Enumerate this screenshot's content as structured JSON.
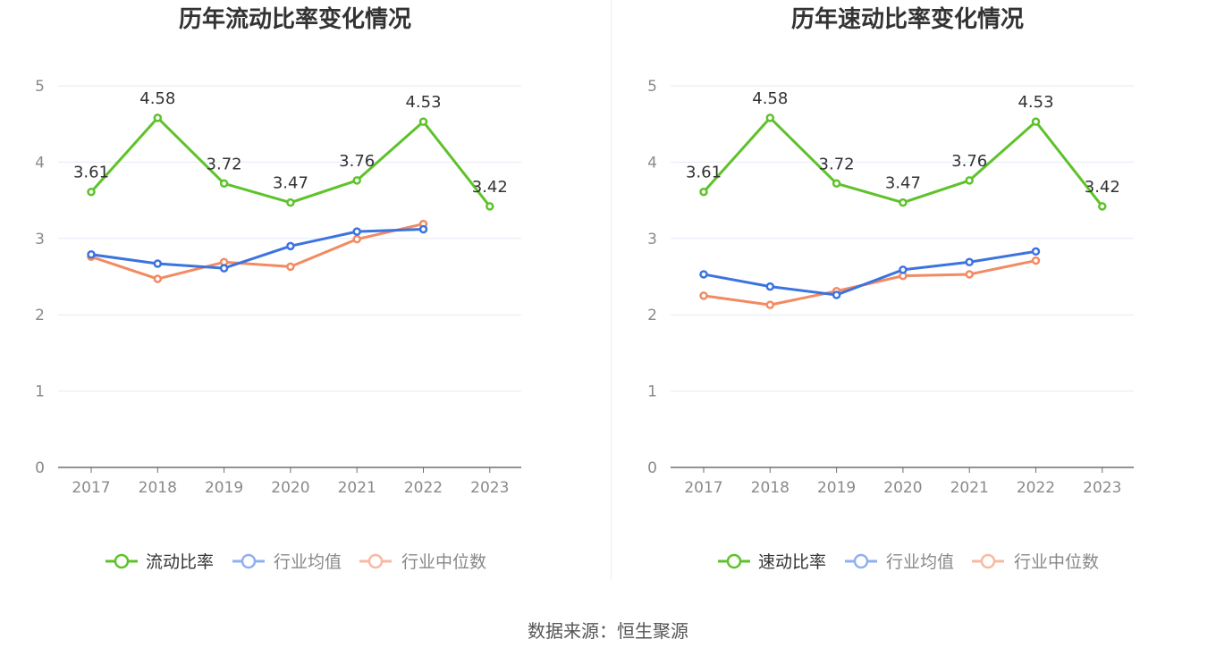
{
  "source": "数据来源：恒生聚源",
  "colors": {
    "main": "#5ec22a",
    "avg": "#3b73e0",
    "median": "#f28a62",
    "legend_avg": "#8fb0ee",
    "legend_median": "#f6b9a2",
    "grid": "#e6e9f5",
    "axis": "#6e6e6e",
    "tick_text": "#8a8a8a",
    "label_text": "#333333"
  },
  "chart_data": [
    {
      "type": "line",
      "title": "历年流动比率变化情况",
      "categories": [
        "2017",
        "2018",
        "2019",
        "2020",
        "2021",
        "2022",
        "2023"
      ],
      "ylim": [
        0,
        5
      ],
      "yticks": [
        "0",
        "1",
        "2",
        "3",
        "4",
        "5"
      ],
      "grid": true,
      "legend_position": "bottom-center",
      "series": [
        {
          "name": "流动比率",
          "values": [
            3.61,
            4.58,
            3.72,
            3.47,
            3.76,
            4.53,
            3.42
          ],
          "labels": [
            "3.61",
            "4.58",
            "3.72",
            "3.47",
            "3.76",
            "4.53",
            "3.42"
          ]
        },
        {
          "name": "行业均值",
          "values": [
            2.79,
            2.67,
            2.61,
            2.9,
            3.09,
            3.12,
            null
          ]
        },
        {
          "name": "行业中位数",
          "values": [
            2.76,
            2.47,
            2.69,
            2.63,
            2.99,
            3.19,
            null
          ]
        }
      ]
    },
    {
      "type": "line",
      "title": "历年速动比率变化情况",
      "categories": [
        "2017",
        "2018",
        "2019",
        "2020",
        "2021",
        "2022",
        "2023"
      ],
      "ylim": [
        0,
        5
      ],
      "yticks": [
        "0",
        "1",
        "2",
        "3",
        "4",
        "5"
      ],
      "grid": true,
      "legend_position": "bottom-center",
      "series": [
        {
          "name": "速动比率",
          "values": [
            3.61,
            4.58,
            3.72,
            3.47,
            3.76,
            4.53,
            3.42
          ],
          "labels": [
            "3.61",
            "4.58",
            "3.72",
            "3.47",
            "3.76",
            "4.53",
            "3.42"
          ]
        },
        {
          "name": "行业均值",
          "values": [
            2.53,
            2.37,
            2.26,
            2.59,
            2.69,
            2.83,
            null
          ]
        },
        {
          "name": "行业中位数",
          "values": [
            2.25,
            2.13,
            2.31,
            2.51,
            2.53,
            2.71,
            null
          ]
        }
      ]
    }
  ]
}
